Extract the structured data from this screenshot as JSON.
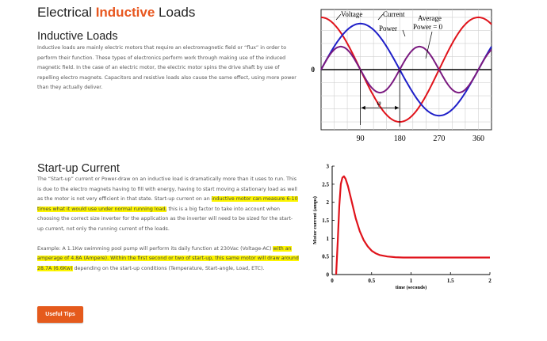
{
  "page": {
    "title_prefix": "Electrical ",
    "title_accent": "Inductive",
    "title_suffix": " Loads"
  },
  "section1": {
    "heading": "Inductive Loads",
    "body": "Inductive loads are mainly electric motors that require an electromagnetic field or “flux” in order to perform their function. These types of electronics perform work through making use of the induced magnetic field. In the case of an electric motor, the electric motor spins the drive shaft by use of repelling electro magnets. Capacitors and resistive loads also cause the same effect, using more power than they actually deliver."
  },
  "section2": {
    "heading": "Start-up Current",
    "p1_before": "The “Start-up” current or Power-draw on an inductive load is dramatically more than it uses to run. This is due to the electro magnets having to fill with energy, having to start moving a stationary load as well as the motor is not very efficient in that state. Start-up current on an ",
    "p1_highlight": "inductive motor can measure 6-10 times what it would use under normal running load,",
    "p1_after": " this is a big factor to take into account when choosing the correct size inverter for the application as the inverter will need to be sized for the start-up current, not only the running current of the loads.",
    "p2_before": "Example: A 1.1Kw swimming pool pump will perform its daily function at 230Vac (Voltage-AC) ",
    "p2_highlight": "with an amperage of 4.8A (Ampere). Within the first second or two of start-up, this same motor will draw around 28.7A (6.6Kw)",
    "p2_after": " depending on the start-up conditions (Temperature, Start-angle, Load, ETC)."
  },
  "button": {
    "label": "Useful Tips"
  },
  "chart_data": [
    {
      "type": "line",
      "title": "",
      "x_ticks": [
        "90",
        "180",
        "270",
        "360"
      ],
      "y_zero_label": "0",
      "xlim": [
        0,
        390
      ],
      "ylim": [
        -1.15,
        1.15
      ],
      "series": [
        {
          "name": "Voltage",
          "function": "cos",
          "amplitude": 1.0,
          "phase_deg": 0,
          "color": "#e0131b"
        },
        {
          "name": "Current",
          "function": "sin",
          "amplitude": 0.88,
          "phase_deg": 0,
          "color": "#1f1fc8"
        },
        {
          "name": "Power",
          "function": "0.5*sin(2x)",
          "amplitude": 0.44,
          "phase_deg": 0,
          "color": "#7a1a80"
        }
      ],
      "annotations": [
        "Voltage",
        "Current",
        "Power",
        "Average",
        "Power = 0",
        "φ"
      ],
      "grid": true
    },
    {
      "type": "line",
      "xlabel": "time (seconds)",
      "ylabel": "Motor current (amps)",
      "xlim": [
        0,
        2
      ],
      "ylim": [
        0,
        3
      ],
      "x_ticks": [
        "0",
        "0.5",
        "1",
        "1.5",
        "2"
      ],
      "y_ticks": [
        "0",
        "0.5",
        "1",
        "1.5",
        "2",
        "2.5",
        "3"
      ],
      "grid": false,
      "series": [
        {
          "color": "#e0131b",
          "x": [
            0.05,
            0.07,
            0.09,
            0.11,
            0.13,
            0.15,
            0.17,
            0.2,
            0.25,
            0.3,
            0.35,
            0.4,
            0.45,
            0.5,
            0.55,
            0.6,
            0.7,
            0.8,
            0.9,
            1.0,
            1.2,
            1.5,
            2.0
          ],
          "y": [
            0.0,
            0.9,
            1.9,
            2.5,
            2.68,
            2.72,
            2.65,
            2.45,
            2.0,
            1.55,
            1.2,
            0.95,
            0.78,
            0.66,
            0.59,
            0.54,
            0.5,
            0.48,
            0.47,
            0.47,
            0.47,
            0.47,
            0.47
          ]
        }
      ]
    }
  ]
}
